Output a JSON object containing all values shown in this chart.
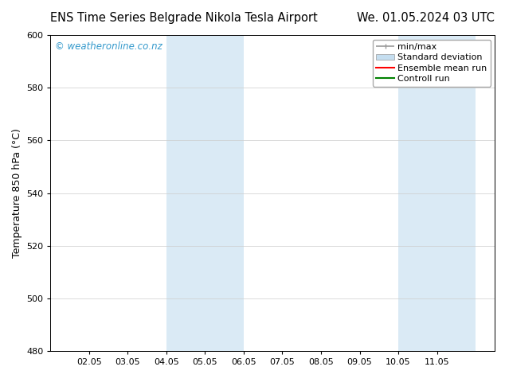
{
  "title_left": "ENS Time Series Belgrade Nikola Tesla Airport",
  "title_right": "We. 01.05.2024 03 UTC",
  "ylabel": "Temperature 850 hPa (°C)",
  "ylim": [
    480,
    600
  ],
  "yticks": [
    480,
    500,
    520,
    540,
    560,
    580,
    600
  ],
  "xtick_labels": [
    "02.05",
    "03.05",
    "04.05",
    "05.05",
    "06.05",
    "07.05",
    "08.05",
    "09.05",
    "10.05",
    "11.05"
  ],
  "xtick_positions": [
    1,
    2,
    3,
    4,
    5,
    6,
    7,
    8,
    9,
    10
  ],
  "xlim": [
    0.0,
    11.5
  ],
  "shaded_bands": [
    {
      "x_start": 3.0,
      "x_end": 4.0,
      "color": "#daeaf5"
    },
    {
      "x_start": 4.0,
      "x_end": 5.0,
      "color": "#daeaf5"
    },
    {
      "x_start": 9.0,
      "x_end": 10.0,
      "color": "#daeaf5"
    },
    {
      "x_start": 10.0,
      "x_end": 11.0,
      "color": "#daeaf5"
    }
  ],
  "watermark_text": "© weatheronline.co.nz",
  "watermark_color": "#3399cc",
  "bg_color": "#ffffff",
  "plot_bg_color": "#ffffff",
  "grid_color": "#cccccc",
  "legend_items": [
    {
      "label": "min/max",
      "color": "#999999",
      "lw": 1.2,
      "style": "line_with_caps"
    },
    {
      "label": "Standard deviation",
      "color": "#c5def0",
      "lw": 8,
      "style": "bar"
    },
    {
      "label": "Ensemble mean run",
      "color": "#ff0000",
      "lw": 1.5,
      "style": "line"
    },
    {
      "label": "Controll run",
      "color": "#008000",
      "lw": 1.5,
      "style": "line"
    }
  ],
  "title_fontsize": 10.5,
  "axis_label_fontsize": 9,
  "tick_fontsize": 8,
  "legend_fontsize": 8,
  "watermark_fontsize": 8.5
}
